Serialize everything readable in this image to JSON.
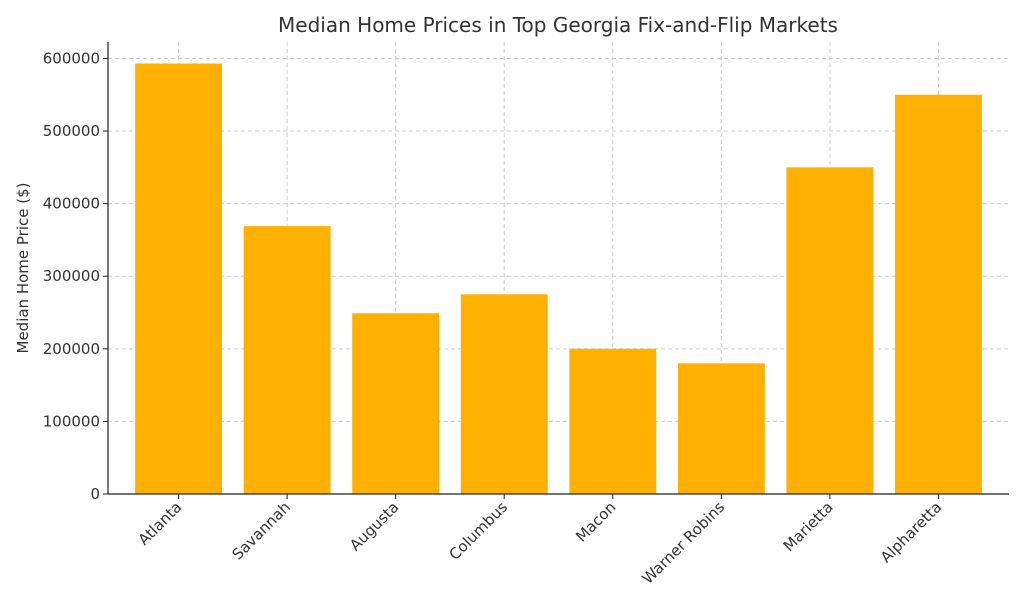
{
  "chart_data": {
    "type": "bar",
    "title": "Median Home Prices in Top Georgia Fix-and-Flip Markets",
    "xlabel": "",
    "ylabel": "Median Home Price ($)",
    "categories": [
      "Atlanta",
      "Savannah",
      "Augusta",
      "Columbus",
      "Macon",
      "Warner Robins",
      "Marietta",
      "Alpharetta"
    ],
    "values": [
      593000,
      369000,
      249000,
      275000,
      200000,
      180000,
      450000,
      550000
    ],
    "ylim": [
      0,
      622650
    ],
    "yticks": [
      "0",
      "100000",
      "200000",
      "300000",
      "400000",
      "500000",
      "600000"
    ],
    "grid": true,
    "bar_color": "#FFB000"
  }
}
